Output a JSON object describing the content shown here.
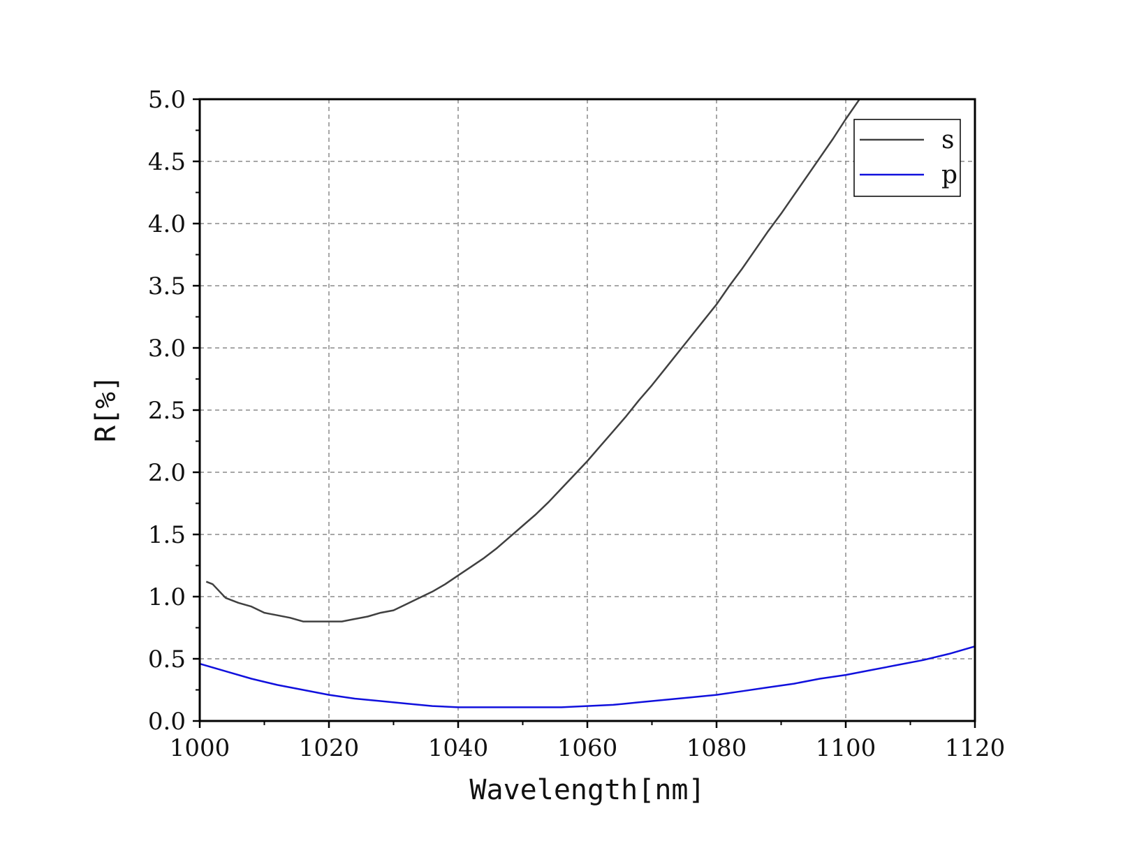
{
  "chart_data": {
    "type": "line",
    "title": "",
    "xlabel": "Wavelength[nm]",
    "ylabel": "R[%]",
    "xlim": [
      1000,
      1120
    ],
    "ylim": [
      0,
      5
    ],
    "xticks": [
      "1000",
      "1020",
      "1040",
      "1060",
      "1080",
      "1100",
      "1120"
    ],
    "yticks": [
      "0.0",
      "0.5",
      "1.0",
      "1.5",
      "2.0",
      "2.5",
      "3.0",
      "3.5",
      "4.0",
      "4.5",
      "5.0"
    ],
    "grid": true,
    "legend_position": "top-right",
    "series": [
      {
        "name": "s",
        "color": "#404040",
        "x": [
          1001,
          1002,
          1004,
          1006,
          1008,
          1010,
          1012,
          1014,
          1016,
          1018,
          1020,
          1022,
          1024,
          1026,
          1028,
          1030,
          1032,
          1034,
          1036,
          1038,
          1040,
          1042,
          1044,
          1046,
          1048,
          1050,
          1052,
          1054,
          1056,
          1058,
          1060,
          1062,
          1064,
          1066,
          1068,
          1070,
          1072,
          1074,
          1076,
          1078,
          1080,
          1082,
          1084,
          1086,
          1088,
          1090,
          1092,
          1094,
          1096,
          1098,
          1100,
          1102,
          1103
        ],
        "y": [
          1.12,
          1.1,
          0.99,
          0.95,
          0.92,
          0.87,
          0.85,
          0.83,
          0.8,
          0.8,
          0.8,
          0.8,
          0.82,
          0.84,
          0.87,
          0.89,
          0.94,
          0.99,
          1.04,
          1.1,
          1.17,
          1.24,
          1.31,
          1.39,
          1.48,
          1.57,
          1.66,
          1.76,
          1.87,
          1.98,
          2.09,
          2.21,
          2.33,
          2.45,
          2.58,
          2.7,
          2.83,
          2.96,
          3.09,
          3.22,
          3.35,
          3.5,
          3.64,
          3.79,
          3.94,
          4.08,
          4.23,
          4.38,
          4.53,
          4.68,
          4.84,
          4.99,
          5.06
        ]
      },
      {
        "name": "p",
        "color": "#1010dd",
        "x": [
          1000,
          1004,
          1008,
          1012,
          1016,
          1020,
          1024,
          1028,
          1032,
          1036,
          1040,
          1044,
          1048,
          1052,
          1056,
          1060,
          1064,
          1068,
          1072,
          1076,
          1080,
          1084,
          1088,
          1092,
          1096,
          1100,
          1104,
          1108,
          1112,
          1116,
          1120
        ],
        "y": [
          0.46,
          0.4,
          0.34,
          0.29,
          0.25,
          0.21,
          0.18,
          0.16,
          0.14,
          0.12,
          0.11,
          0.11,
          0.11,
          0.11,
          0.11,
          0.12,
          0.13,
          0.15,
          0.17,
          0.19,
          0.21,
          0.24,
          0.27,
          0.3,
          0.34,
          0.37,
          0.41,
          0.45,
          0.49,
          0.54,
          0.6
        ]
      }
    ]
  }
}
